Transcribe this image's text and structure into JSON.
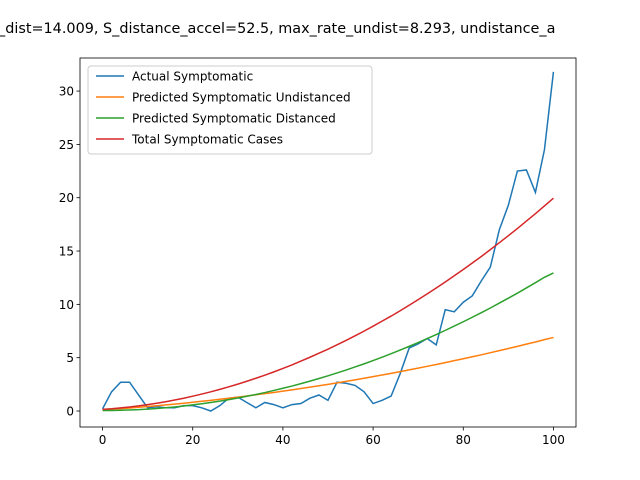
{
  "chart_data": {
    "type": "line",
    "title": "_dist=14.009, S_distance_accel=52.5, max_rate_undist=8.293, undistance_a",
    "x": [
      0,
      2,
      4,
      6,
      8,
      10,
      12,
      14,
      16,
      18,
      20,
      22,
      24,
      26,
      28,
      30,
      32,
      34,
      36,
      38,
      40,
      42,
      44,
      46,
      48,
      50,
      52,
      54,
      56,
      58,
      60,
      62,
      64,
      66,
      68,
      70,
      72,
      74,
      76,
      78,
      80,
      82,
      84,
      86,
      88,
      90,
      92,
      94,
      96,
      98,
      100
    ],
    "series": [
      {
        "name": "Actual Symptomatic",
        "color": "#1f77b4",
        "values": [
          0.2,
          1.8,
          2.7,
          2.7,
          1.5,
          0.3,
          0.4,
          0.3,
          0.3,
          0.5,
          0.5,
          0.3,
          0.0,
          0.5,
          1.2,
          1.3,
          0.8,
          0.3,
          0.8,
          0.6,
          0.3,
          0.6,
          0.7,
          1.2,
          1.5,
          1.0,
          2.7,
          2.6,
          2.4,
          1.8,
          0.7,
          1.0,
          1.4,
          3.5,
          5.9,
          6.3,
          6.8,
          6.2,
          9.5,
          9.3,
          10.2,
          10.8,
          12.2,
          13.5,
          17.0,
          19.3,
          22.5,
          22.6,
          20.5,
          24.5,
          31.8
        ]
      },
      {
        "name": "Predicted Symptomatic Undistanced",
        "color": "#ff7f0e",
        "values": [
          0.1,
          0.16,
          0.22,
          0.28,
          0.35,
          0.42,
          0.49,
          0.57,
          0.65,
          0.73,
          0.82,
          0.91,
          1.0,
          1.1,
          1.2,
          1.3,
          1.41,
          1.52,
          1.63,
          1.74,
          1.86,
          1.98,
          2.11,
          2.24,
          2.37,
          2.5,
          2.64,
          2.78,
          2.92,
          3.07,
          3.22,
          3.38,
          3.53,
          3.69,
          3.86,
          4.02,
          4.19,
          4.36,
          4.54,
          4.72,
          4.9,
          5.09,
          5.27,
          5.47,
          5.66,
          5.86,
          6.06,
          6.27,
          6.47,
          6.69,
          6.9
        ]
      },
      {
        "name": "Predicted Symptomatic Distanced",
        "color": "#2ca02c",
        "values": [
          0.05,
          0.05,
          0.07,
          0.1,
          0.13,
          0.18,
          0.24,
          0.3,
          0.38,
          0.47,
          0.57,
          0.68,
          0.8,
          0.93,
          1.07,
          1.22,
          1.38,
          1.55,
          1.73,
          1.93,
          2.13,
          2.34,
          2.57,
          2.8,
          3.05,
          3.3,
          3.57,
          3.84,
          4.13,
          4.42,
          4.73,
          5.05,
          5.37,
          5.71,
          6.06,
          6.42,
          6.79,
          7.17,
          7.56,
          7.96,
          8.37,
          8.79,
          9.22,
          9.66,
          10.12,
          10.58,
          11.05,
          11.54,
          12.03,
          12.54,
          12.95
        ]
      },
      {
        "name": "Total Symptomatic Cases",
        "color": "#d62728",
        "values": [
          0.15,
          0.21,
          0.29,
          0.38,
          0.48,
          0.6,
          0.73,
          0.87,
          1.03,
          1.2,
          1.39,
          1.59,
          1.8,
          2.03,
          2.27,
          2.52,
          2.79,
          3.07,
          3.36,
          3.67,
          3.99,
          4.32,
          4.68,
          5.04,
          5.42,
          5.8,
          6.21,
          6.62,
          7.05,
          7.49,
          7.95,
          8.43,
          8.9,
          9.4,
          9.92,
          10.44,
          10.98,
          11.53,
          12.1,
          12.68,
          13.27,
          13.88,
          14.49,
          15.13,
          15.78,
          16.44,
          17.11,
          17.81,
          18.5,
          19.23,
          19.95
        ]
      }
    ],
    "xlim": [
      -5,
      105
    ],
    "ylim": [
      -1.5,
      33.1
    ],
    "xticks": [
      0,
      20,
      40,
      60,
      80,
      100
    ],
    "yticks": [
      0,
      5,
      10,
      15,
      20,
      25,
      30
    ],
    "legend": "upper left"
  }
}
